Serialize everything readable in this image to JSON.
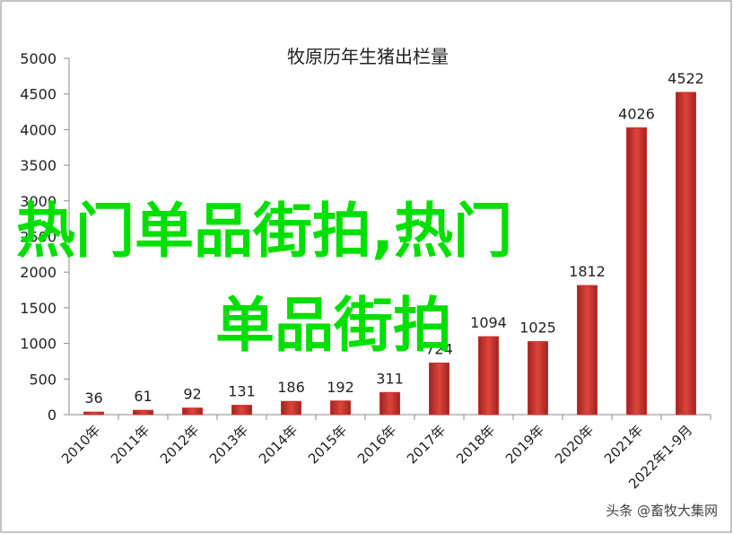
{
  "chart_data": {
    "type": "bar",
    "title": "牧原历年生猪出栏量",
    "categories": [
      "2010年",
      "2011年",
      "2012年",
      "2013年",
      "2014年",
      "2015年",
      "2016年",
      "2017年",
      "2018年",
      "2019年",
      "2020年",
      "2021年",
      "2022年1-9月"
    ],
    "values": [
      36,
      61,
      92,
      131,
      186,
      192,
      311,
      724,
      1094,
      1025,
      1812,
      4026,
      4522
    ],
    "color": "#c8332d",
    "ylim": [
      0,
      5000
    ],
    "yticks": [
      0,
      500,
      1000,
      1500,
      2000,
      2500,
      3000,
      3500,
      4000,
      4500,
      5000
    ],
    "grid": false
  },
  "overlay_text": [
    "热门单品街拍,热门",
    "单品街拍"
  ],
  "watermark": "头条 @畜牧大集网"
}
